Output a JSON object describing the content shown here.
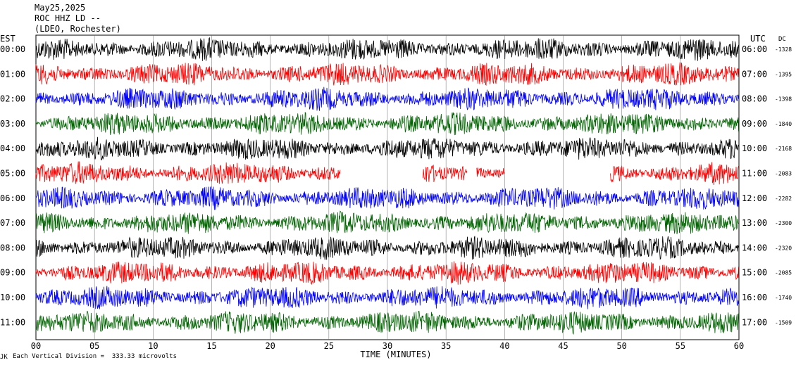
{
  "header": {
    "date": "May25,2025",
    "station": "ROC HHZ LD --",
    "network": "(LDEO, Rochester)"
  },
  "left_axis_title": "EST",
  "right_axis_title": "UTC",
  "dc_title": "DC",
  "footer": {
    "note": "Each Vertical Division =  333.33 microvolts",
    "mark": "JK"
  },
  "chart_data": {
    "type": "line",
    "title": "",
    "xlabel": "TIME (MINUTES)",
    "ylabel": "",
    "xlim": [
      0,
      60
    ],
    "x_ticks": [
      "00",
      "05",
      "10",
      "15",
      "20",
      "25",
      "30",
      "35",
      "40",
      "45",
      "50",
      "55",
      "60"
    ],
    "rows": [
      {
        "est": "00:00",
        "utc": "06:00",
        "dc": "-1328",
        "color": "#000000",
        "gaps": []
      },
      {
        "est": "01:00",
        "utc": "07:00",
        "dc": "-1395",
        "color": "#ff0000",
        "gaps": []
      },
      {
        "est": "02:00",
        "utc": "08:00",
        "dc": "-1398",
        "color": "#0000ff",
        "gaps": []
      },
      {
        "est": "03:00",
        "utc": "09:00",
        "dc": "-1840",
        "color": "#006400",
        "gaps": []
      },
      {
        "est": "04:00",
        "utc": "10:00",
        "dc": "-2168",
        "color": "#000000",
        "gaps": []
      },
      {
        "est": "05:00",
        "utc": "11:00",
        "dc": "-2083",
        "color": "#ff0000",
        "gaps": [
          [
            26.0,
            33.0
          ],
          [
            36.8,
            37.6
          ],
          [
            40.0,
            49.0
          ]
        ]
      },
      {
        "est": "06:00",
        "utc": "12:00",
        "dc": "-2282",
        "color": "#0000ff",
        "gaps": []
      },
      {
        "est": "07:00",
        "utc": "13:00",
        "dc": "-2300",
        "color": "#006400",
        "gaps": []
      },
      {
        "est": "08:00",
        "utc": "14:00",
        "dc": "-2320",
        "color": "#000000",
        "gaps": []
      },
      {
        "est": "09:00",
        "utc": "15:00",
        "dc": "-2085",
        "color": "#ff0000",
        "gaps": []
      },
      {
        "est": "10:00",
        "utc": "16:00",
        "dc": "-1740",
        "color": "#0000ff",
        "gaps": []
      },
      {
        "est": "11:00",
        "utc": "17:00",
        "dc": "-1509",
        "color": "#006400",
        "gaps": []
      }
    ],
    "grid": true
  }
}
